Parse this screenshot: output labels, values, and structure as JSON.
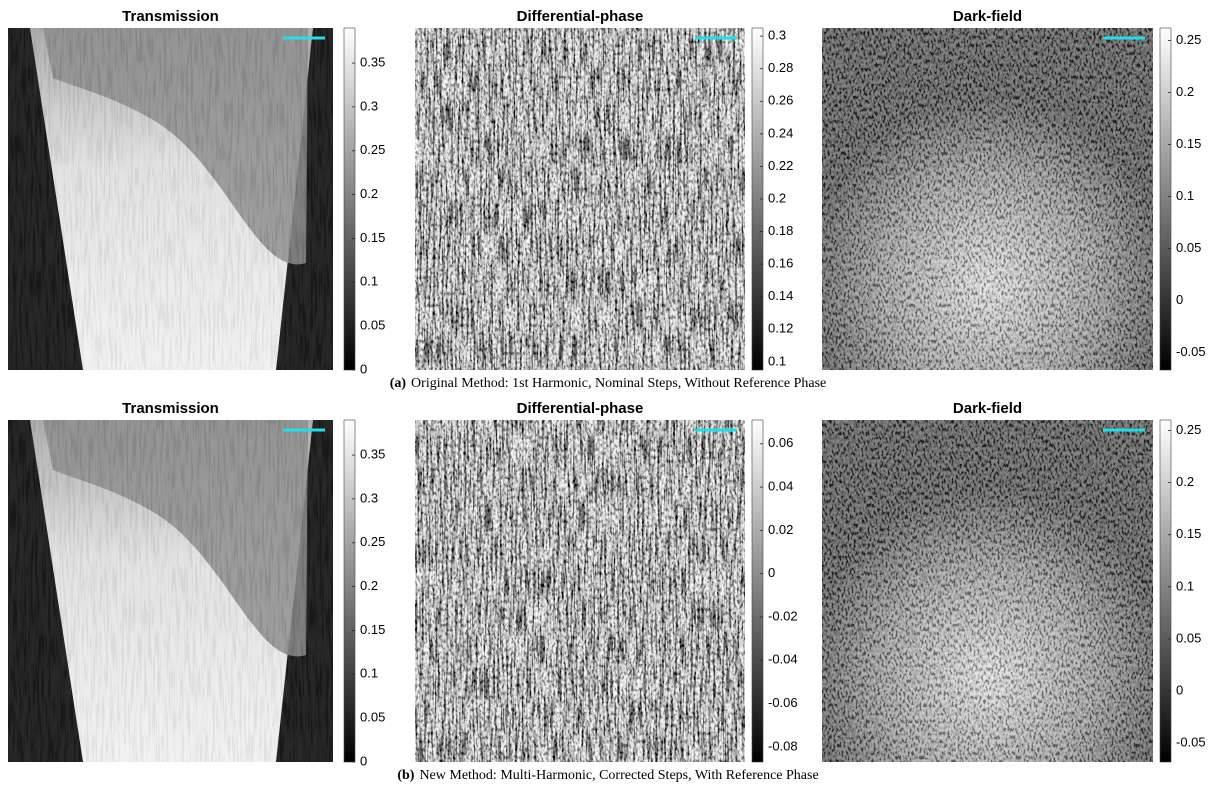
{
  "figure": {
    "rows": [
      {
        "label": "(a)",
        "caption": "Original Method: 1st Harmonic, Nominal Steps, Without Reference Phase",
        "panels": [
          {
            "title": "Transmission",
            "colorbar": {
              "lim": [
                0,
                0.39
              ],
              "ticks": [
                0,
                0.05,
                0.1,
                0.15,
                0.2,
                0.25,
                0.3,
                0.35
              ]
            }
          },
          {
            "title": "Differential-phase",
            "colorbar": {
              "lim": [
                0.095,
                0.305
              ],
              "ticks": [
                0.1,
                0.12,
                0.14,
                0.16,
                0.18,
                0.2,
                0.22,
                0.24,
                0.26,
                0.28,
                0.3
              ]
            }
          },
          {
            "title": "Dark-field",
            "colorbar": {
              "lim": [
                -0.067,
                0.262
              ],
              "ticks": [
                -0.05,
                0,
                0.05,
                0.1,
                0.15,
                0.2,
                0.25
              ]
            }
          }
        ]
      },
      {
        "label": "(b)",
        "caption": "New Method: Multi-Harmonic, Corrected Steps, With Reference Phase",
        "panels": [
          {
            "title": "Transmission",
            "colorbar": {
              "lim": [
                0,
                0.39
              ],
              "ticks": [
                0,
                0.05,
                0.1,
                0.15,
                0.2,
                0.25,
                0.3,
                0.35
              ]
            }
          },
          {
            "title": "Differential-phase",
            "colorbar": {
              "lim": [
                -0.087,
                0.071
              ],
              "ticks": [
                -0.08,
                -0.06,
                -0.04,
                -0.02,
                0,
                0.02,
                0.04,
                0.06
              ]
            }
          },
          {
            "title": "Dark-field",
            "colorbar": {
              "lim": [
                -0.068,
                0.26
              ],
              "ticks": [
                -0.05,
                0,
                0.05,
                0.1,
                0.15,
                0.2,
                0.25
              ]
            }
          }
        ]
      }
    ]
  }
}
